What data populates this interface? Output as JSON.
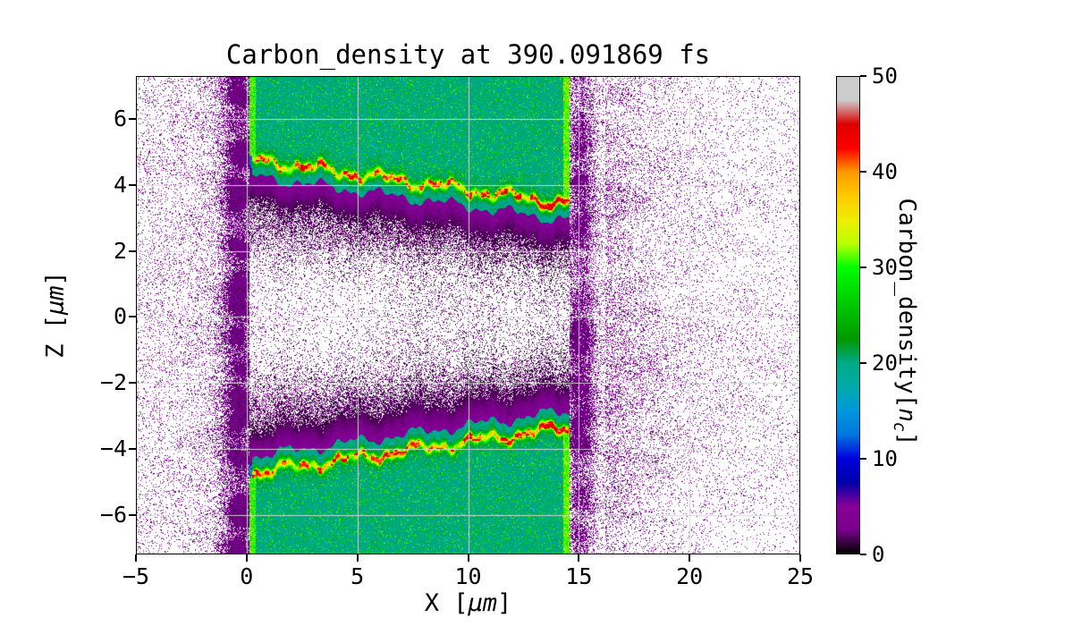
{
  "figure": {
    "background": "#ffffff"
  },
  "chart_data": {
    "type": "heatmap",
    "title": "Carbon_density at 390.091869 fs",
    "xlabel": "X [μm]",
    "ylabel": "Z [μm]",
    "colorbar_label": "Carbon_density[n_c]",
    "label_parts": {
      "x_pre": "X [",
      "x_italic": "μm",
      "x_post": "]",
      "y_pre": "Z [",
      "y_italic": "μm",
      "y_post": "]",
      "cb_pre": "Carbon_density[",
      "cb_italic": "n",
      "cb_sub": "c",
      "cb_post": "]"
    },
    "xlim": [
      -5,
      25
    ],
    "zlim": [
      -7.2,
      7.3
    ],
    "clim": [
      0,
      50
    ],
    "colormap": "nipy_spectral",
    "grid": true,
    "grid_color": "#d7d7d7",
    "x_tick_values": [
      -5,
      0,
      5,
      10,
      15,
      20,
      25
    ],
    "x_tick_labels": [
      "−5",
      "0",
      "5",
      "10",
      "15",
      "20",
      "25"
    ],
    "z_tick_values": [
      6,
      4,
      2,
      0,
      -2,
      -4,
      -6
    ],
    "z_tick_labels": [
      "6",
      "4",
      "2",
      "0",
      "−2",
      "−4",
      "−6"
    ],
    "cb_tick_values": [
      0,
      10,
      20,
      30,
      40,
      50
    ],
    "cb_tick_labels": [
      "0",
      "10",
      "20",
      "30",
      "40",
      "50"
    ],
    "colormap_stops": [
      [
        0.0,
        "#000000"
      ],
      [
        0.05,
        "#770088"
      ],
      [
        0.1,
        "#880099"
      ],
      [
        0.15,
        "#0000aa"
      ],
      [
        0.2,
        "#0000dd"
      ],
      [
        0.25,
        "#0077dd"
      ],
      [
        0.3,
        "#0099dd"
      ],
      [
        0.35,
        "#00aaaa"
      ],
      [
        0.4,
        "#00aa88"
      ],
      [
        0.45,
        "#009900"
      ],
      [
        0.5,
        "#00bb00"
      ],
      [
        0.55,
        "#00dd00"
      ],
      [
        0.6,
        "#00ff00"
      ],
      [
        0.65,
        "#bbff00"
      ],
      [
        0.7,
        "#eeee00"
      ],
      [
        0.75,
        "#ffcc00"
      ],
      [
        0.8,
        "#ff9900"
      ],
      [
        0.85,
        "#ff0000"
      ],
      [
        0.9,
        "#dd0000"
      ],
      [
        0.95,
        "#cccccc"
      ],
      [
        1.0,
        "#cccccc"
      ]
    ],
    "features": {
      "description": "Two carbon slabs (fill ≈ 20 n_c, teal) spanning x ≈ 0–14.6 μm, above z ≈ +3.4 μm and below z ≈ −3.4 μm; hot compressed layers (30–45 n_c, yellow/orange with red spots) along their inner surfaces sloping from |z| ≈ 4.7 at x ≈ 0.4 to |z| ≈ 3.4 at x ≈ 14.2; blue→purple→black density falloff into the central gap; dense dark halo just outside slab edges; sparse speckle (≤ 6 n_c) over white vacuum elsewhere",
      "slabs": [
        {
          "x_range": [
            0.12,
            14.58
          ],
          "z_range": [
            3.4,
            7.3
          ],
          "fill_density": 20,
          "ridge": {
            "x_start": 0.4,
            "x_end": 14.2,
            "z_start": 4.75,
            "z_end": 3.45,
            "peak_density": 44
          }
        },
        {
          "x_range": [
            0.12,
            14.58
          ],
          "z_range": [
            -7.2,
            -3.4
          ],
          "fill_density": 20,
          "ridge": {
            "x_start": 0.4,
            "x_end": 14.2,
            "z_start": -4.72,
            "z_end": -3.38,
            "peak_density": 44
          }
        }
      ]
    }
  }
}
